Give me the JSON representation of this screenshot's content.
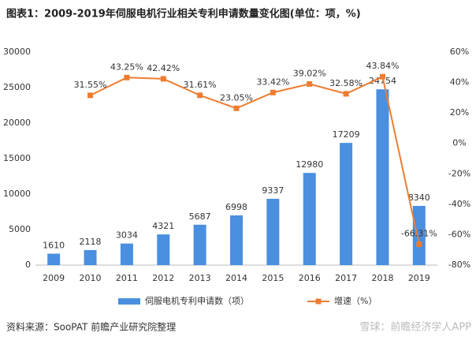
{
  "chart_data": {
    "type": "bar-line",
    "title": "图表1：2009-2019年伺服电机行业相关专利申请数量变化图(单位：项，%)",
    "categories": [
      "2009",
      "2010",
      "2011",
      "2012",
      "2013",
      "2014",
      "2015",
      "2016",
      "2017",
      "2018",
      "2019"
    ],
    "series": [
      {
        "name": "伺服电机专利申请数（项）",
        "type": "bar",
        "color": "#4a8fe0",
        "values": [
          1610,
          2118,
          3034,
          4321,
          5687,
          6998,
          9337,
          12980,
          17209,
          24754,
          8340
        ]
      },
      {
        "name": "增速（%）",
        "type": "line",
        "axis": "y2",
        "color": "#ed7d31",
        "values": [
          null,
          31.55,
          43.25,
          42.42,
          31.61,
          23.05,
          33.42,
          39.02,
          32.58,
          43.84,
          -66.31
        ],
        "value_labels": [
          null,
          "31.55%",
          "43.25%",
          "42.42%",
          "31.61%",
          "23.05%",
          "33.42%",
          "39.02%",
          "32.58%",
          "43.84%",
          "-66.31%"
        ]
      }
    ],
    "ylim": [
      0,
      30000
    ],
    "yticks": [
      0,
      5000,
      10000,
      15000,
      20000,
      25000,
      30000
    ],
    "y2lim": [
      -80,
      60
    ],
    "y2ticks": [
      {
        "value": -80,
        "label": "-80%"
      },
      {
        "value": -60,
        "label": "-60%"
      },
      {
        "value": -40,
        "label": "-40%"
      },
      {
        "value": -20,
        "label": "-20%"
      },
      {
        "value": 0,
        "label": "0%"
      },
      {
        "value": 20,
        "label": "20%"
      },
      {
        "value": 40,
        "label": "40%"
      },
      {
        "value": 60,
        "label": "60%"
      }
    ],
    "grid": false,
    "source": "资料来源：SooPAT 前瞻产业研究院整理",
    "watermark": "雪球：前瞻经济学人APP"
  }
}
